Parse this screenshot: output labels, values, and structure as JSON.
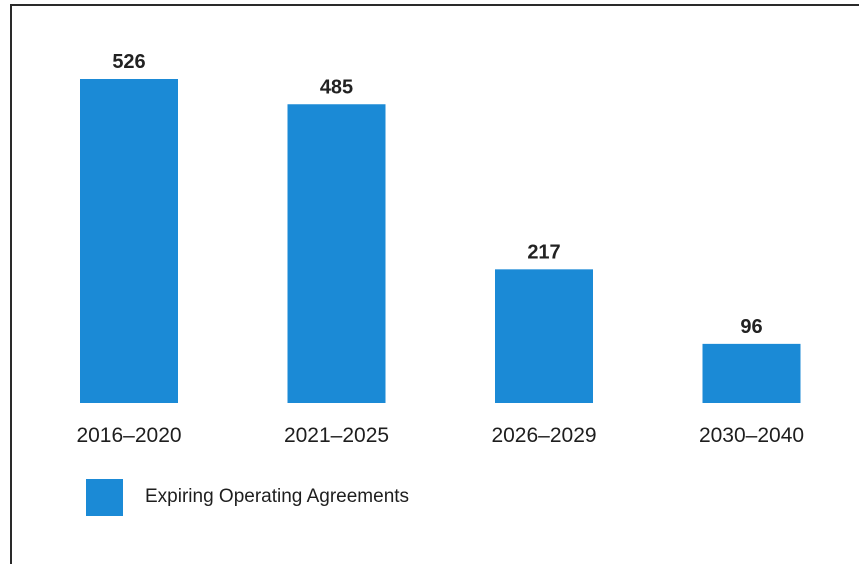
{
  "chart_data": {
    "type": "bar",
    "categories": [
      "2016–2020",
      "2021–2025",
      "2026–2029",
      "2030–2040"
    ],
    "series": [
      {
        "name": "Expiring Operating Agreements",
        "values": [
          526,
          485,
          217,
          96
        ],
        "color": "#1b8ad6"
      }
    ],
    "title": "",
    "xlabel": "",
    "ylabel": "",
    "ylim": [
      0,
      526
    ],
    "grid": false,
    "legend_position": "bottom-left",
    "data_labels": true
  },
  "legend": {
    "label": "Expiring Operating Agreements"
  }
}
